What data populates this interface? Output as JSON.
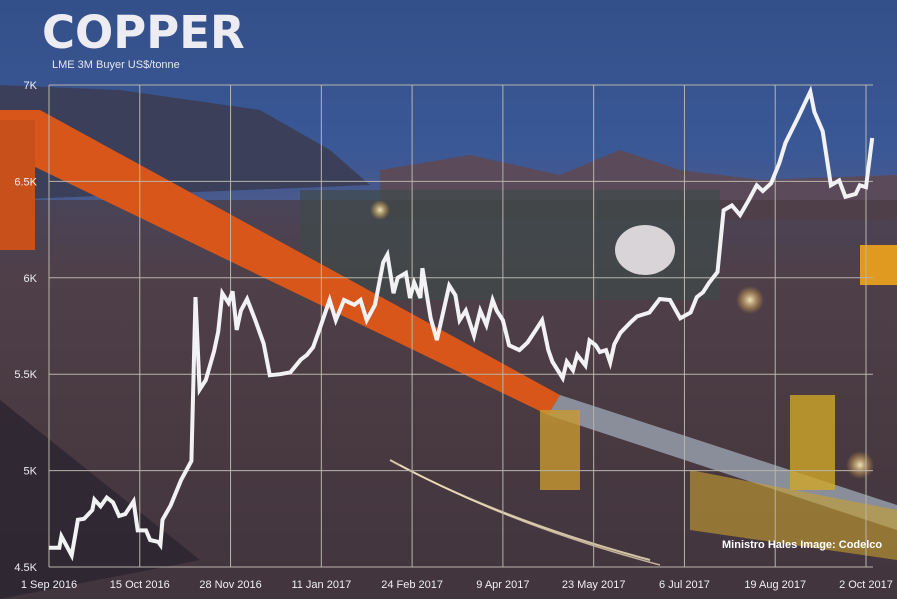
{
  "header": {
    "title": "COPPER",
    "subtitle": "LME 3M Buyer US$/tonne"
  },
  "credit": "Ministro Hales Image: Codelco",
  "colors": {
    "line": "#f2f2f4",
    "grid": "#b8b4aa",
    "text": "#f0f0f4"
  },
  "chart_data": {
    "type": "line",
    "title": "COPPER",
    "subtitle": "LME 3M Buyer US$/tonne",
    "xlabel": "",
    "ylabel": "",
    "ylim": [
      4500,
      7000
    ],
    "xlim": [
      "2016-09-01",
      "2017-10-02"
    ],
    "grid": true,
    "y_ticks": [
      {
        "value": 7000,
        "label": "7K"
      },
      {
        "value": 6500,
        "label": "6.5K"
      },
      {
        "value": 6000,
        "label": "6K"
      },
      {
        "value": 5500,
        "label": "5.5K"
      },
      {
        "value": 5000,
        "label": "5K"
      },
      {
        "value": 4500,
        "label": "4.5K"
      }
    ],
    "x_ticks": [
      {
        "date": "2016-09-01",
        "label": "1 Sep 2016"
      },
      {
        "date": "2016-10-15",
        "label": "15 Oct 2016"
      },
      {
        "date": "2016-11-28",
        "label": "28 Nov 2016"
      },
      {
        "date": "2017-01-11",
        "label": "11 Jan 2017"
      },
      {
        "date": "2017-02-24",
        "label": "24 Feb 2017"
      },
      {
        "date": "2017-04-09",
        "label": "9 Apr 2017"
      },
      {
        "date": "2017-05-23",
        "label": "23 May 2017"
      },
      {
        "date": "2017-07-06",
        "label": "6 Jul 2017"
      },
      {
        "date": "2017-08-19",
        "label": "19 Aug 2017"
      },
      {
        "date": "2017-10-02",
        "label": "2 Oct 2017"
      }
    ],
    "series": [
      {
        "points": [
          [
            "2016-09-01",
            4600
          ],
          [
            "2016-09-06",
            4600
          ],
          [
            "2016-09-07",
            4660
          ],
          [
            "2016-09-09",
            4620
          ],
          [
            "2016-09-12",
            4560
          ],
          [
            "2016-09-15",
            4745
          ],
          [
            "2016-09-18",
            4750
          ],
          [
            "2016-09-22",
            4795
          ],
          [
            "2016-09-23",
            4850
          ],
          [
            "2016-09-26",
            4815
          ],
          [
            "2016-09-29",
            4860
          ],
          [
            "2016-10-02",
            4835
          ],
          [
            "2016-10-05",
            4765
          ],
          [
            "2016-10-08",
            4775
          ],
          [
            "2016-10-12",
            4840
          ],
          [
            "2016-10-14",
            4690
          ],
          [
            "2016-10-18",
            4690
          ],
          [
            "2016-10-20",
            4640
          ],
          [
            "2016-10-24",
            4630
          ],
          [
            "2016-10-25",
            4615
          ],
          [
            "2016-10-26",
            4745
          ],
          [
            "2016-10-30",
            4820
          ],
          [
            "2016-11-04",
            4950
          ],
          [
            "2016-11-09",
            5050
          ],
          [
            "2016-11-11",
            5900
          ],
          [
            "2016-11-13",
            5420
          ],
          [
            "2016-11-16",
            5470
          ],
          [
            "2016-11-20",
            5620
          ],
          [
            "2016-11-22",
            5720
          ],
          [
            "2016-11-24",
            5920
          ],
          [
            "2016-11-27",
            5870
          ],
          [
            "2016-11-29",
            5930
          ],
          [
            "2016-12-01",
            5730
          ],
          [
            "2016-12-03",
            5830
          ],
          [
            "2016-12-06",
            5890
          ],
          [
            "2016-12-10",
            5780
          ],
          [
            "2016-12-14",
            5660
          ],
          [
            "2016-12-17",
            5495
          ],
          [
            "2016-12-22",
            5500
          ],
          [
            "2016-12-27",
            5510
          ],
          [
            "2017-01-01",
            5575
          ],
          [
            "2017-01-04",
            5600
          ],
          [
            "2017-01-07",
            5640
          ],
          [
            "2017-01-10",
            5730
          ],
          [
            "2017-01-15",
            5885
          ],
          [
            "2017-01-18",
            5780
          ],
          [
            "2017-01-22",
            5885
          ],
          [
            "2017-01-27",
            5860
          ],
          [
            "2017-01-30",
            5885
          ],
          [
            "2017-02-02",
            5780
          ],
          [
            "2017-02-06",
            5860
          ],
          [
            "2017-02-10",
            6080
          ],
          [
            "2017-02-12",
            6120
          ],
          [
            "2017-02-15",
            5920
          ],
          [
            "2017-02-17",
            6000
          ],
          [
            "2017-02-21",
            6025
          ],
          [
            "2017-02-23",
            5895
          ],
          [
            "2017-02-25",
            5975
          ],
          [
            "2017-02-28",
            5895
          ],
          [
            "2017-03-01",
            6050
          ],
          [
            "2017-03-05",
            5790
          ],
          [
            "2017-03-08",
            5677
          ],
          [
            "2017-03-14",
            5960
          ],
          [
            "2017-03-17",
            5910
          ],
          [
            "2017-03-19",
            5780
          ],
          [
            "2017-03-22",
            5830
          ],
          [
            "2017-03-26",
            5700
          ],
          [
            "2017-03-29",
            5830
          ],
          [
            "2017-04-01",
            5755
          ],
          [
            "2017-04-04",
            5885
          ],
          [
            "2017-04-06",
            5830
          ],
          [
            "2017-04-09",
            5780
          ],
          [
            "2017-04-12",
            5650
          ],
          [
            "2017-04-17",
            5625
          ],
          [
            "2017-04-21",
            5665
          ],
          [
            "2017-04-25",
            5730
          ],
          [
            "2017-04-28",
            5780
          ],
          [
            "2017-05-01",
            5625
          ],
          [
            "2017-05-03",
            5565
          ],
          [
            "2017-05-08",
            5480
          ],
          [
            "2017-05-10",
            5565
          ],
          [
            "2017-05-13",
            5520
          ],
          [
            "2017-05-15",
            5600
          ],
          [
            "2017-05-19",
            5545
          ],
          [
            "2017-05-21",
            5675
          ],
          [
            "2017-05-24",
            5650
          ],
          [
            "2017-05-26",
            5615
          ],
          [
            "2017-05-29",
            5625
          ],
          [
            "2017-05-31",
            5560
          ],
          [
            "2017-06-02",
            5655
          ],
          [
            "2017-06-05",
            5715
          ],
          [
            "2017-06-10",
            5770
          ],
          [
            "2017-06-13",
            5800
          ],
          [
            "2017-06-19",
            5820
          ],
          [
            "2017-06-24",
            5890
          ],
          [
            "2017-06-29",
            5885
          ],
          [
            "2017-07-04",
            5790
          ],
          [
            "2017-07-09",
            5820
          ],
          [
            "2017-07-12",
            5900
          ],
          [
            "2017-07-15",
            5925
          ],
          [
            "2017-07-18",
            5975
          ],
          [
            "2017-07-22",
            6030
          ],
          [
            "2017-07-25",
            6350
          ],
          [
            "2017-07-29",
            6375
          ],
          [
            "2017-08-02",
            6325
          ],
          [
            "2017-08-06",
            6400
          ],
          [
            "2017-08-10",
            6480
          ],
          [
            "2017-08-13",
            6450
          ],
          [
            "2017-08-17",
            6490
          ],
          [
            "2017-08-21",
            6595
          ],
          [
            "2017-08-24",
            6700
          ],
          [
            "2017-08-30",
            6830
          ],
          [
            "2017-09-05",
            6965
          ],
          [
            "2017-09-07",
            6860
          ],
          [
            "2017-09-11",
            6760
          ],
          [
            "2017-09-15",
            6480
          ],
          [
            "2017-09-19",
            6505
          ],
          [
            "2017-09-22",
            6420
          ],
          [
            "2017-09-27",
            6435
          ],
          [
            "2017-09-29",
            6480
          ],
          [
            "2017-10-02",
            6470
          ],
          [
            "2017-10-05",
            6725
          ]
        ]
      }
    ]
  }
}
